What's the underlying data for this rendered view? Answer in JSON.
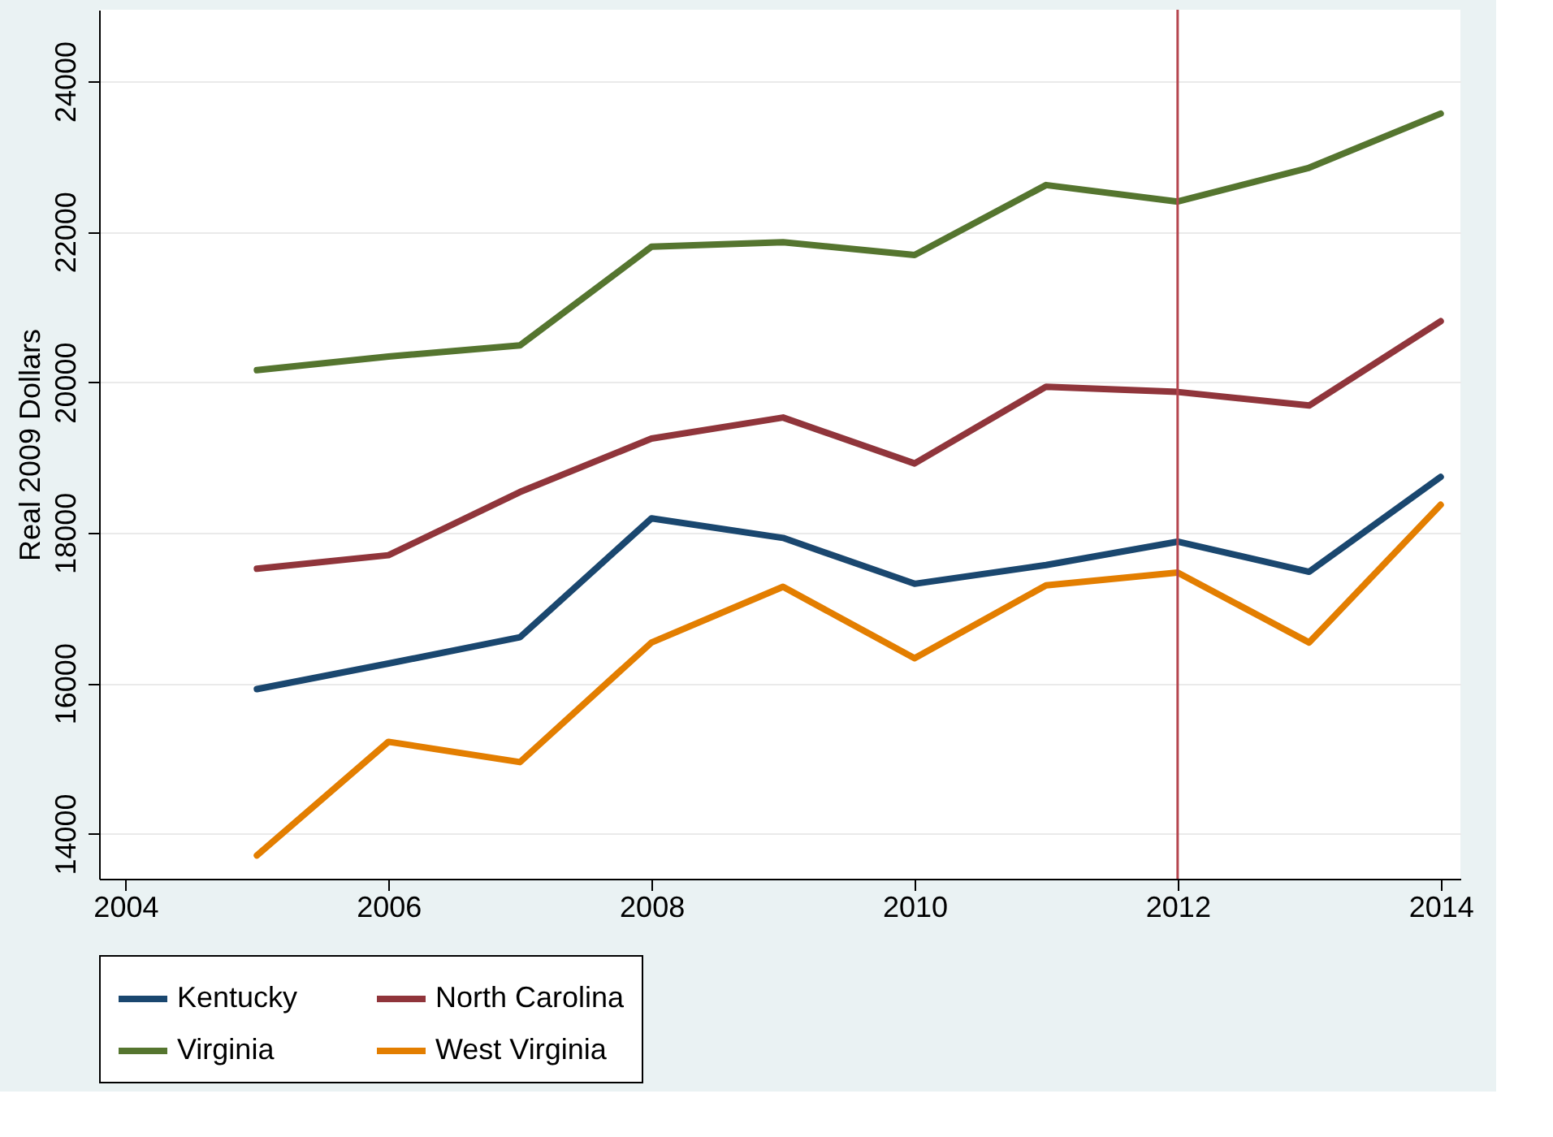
{
  "chart_data": {
    "type": "line",
    "ylabel": "Real 2009 Dollars",
    "x": [
      2005,
      2006,
      2007,
      2008,
      2009,
      2010,
      2011,
      2012,
      2013,
      2014
    ],
    "series": [
      {
        "name": "Kentucky",
        "color": "#1a476f",
        "values": [
          15920,
          16260,
          16610,
          18190,
          17930,
          17320,
          17570,
          17880,
          17480,
          18740
        ]
      },
      {
        "name": "North Carolina",
        "color": "#90353b",
        "values": [
          17520,
          17700,
          18540,
          19250,
          19530,
          18920,
          19940,
          19870,
          19690,
          20810
        ]
      },
      {
        "name": "Virginia",
        "color": "#55752f",
        "values": [
          20160,
          20340,
          20490,
          21800,
          21860,
          21690,
          22620,
          22400,
          22850,
          23570
        ]
      },
      {
        "name": "West Virginia",
        "color": "#e37e00",
        "values": [
          13710,
          15220,
          14950,
          16540,
          17280,
          16330,
          17300,
          17470,
          16540,
          18370
        ]
      }
    ],
    "xlim": [
      2003.8,
      2014.15
    ],
    "xticks": [
      2004,
      2006,
      2008,
      2010,
      2012,
      2014
    ],
    "ylim": [
      13400,
      24950
    ],
    "yticks": [
      14000,
      16000,
      18000,
      20000,
      22000,
      24000
    ],
    "ref_lines": [
      {
        "axis": "x",
        "value": 2012,
        "color": "#b5464f"
      }
    ],
    "grid": "y",
    "legend": "bottom"
  }
}
